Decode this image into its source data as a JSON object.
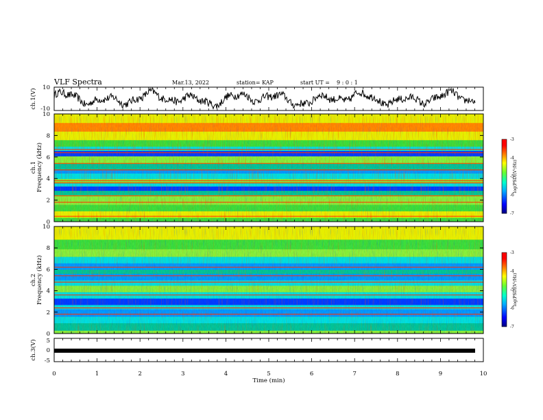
{
  "header": {
    "title": "VLF Spectra",
    "date": "Mar.13, 2022",
    "station_label": "station= KAP",
    "start_label": "start UT =",
    "start_time": "9 : 0 : 1"
  },
  "chart_data": [
    {
      "type": "line",
      "panel": "ch1-waveform",
      "ylabel": "ch.1(V)",
      "ylim": [
        -10,
        10
      ],
      "yticks": [
        10,
        -10
      ],
      "xlim": [
        0,
        10
      ],
      "color": "#000000"
    },
    {
      "type": "heatmap",
      "panel": "ch1-spectrogram",
      "ylabel_line1": "ch.1",
      "ylabel_line2": "Frequency (kHz)",
      "ylim": [
        0,
        10
      ],
      "yticks": [
        "0",
        "2",
        "4",
        "6",
        "8",
        "10"
      ],
      "xlim": [
        0,
        10
      ],
      "colorbar": {
        "label": "log(PSD)(V²/Hz)",
        "range": [
          -7,
          -3
        ],
        "ticks": [
          "-3",
          "-4",
          "-5",
          "-6",
          "-7"
        ]
      },
      "horizontal_lines_khz": [
        0.5,
        1.8,
        2.4,
        3.6,
        3.8,
        4.8,
        5.4,
        6.4,
        6.7
      ]
    },
    {
      "type": "heatmap",
      "panel": "ch2-spectrogram",
      "ylabel_line1": "ch.2",
      "ylabel_line2": "Frequency (kHz)",
      "ylim": [
        0,
        10
      ],
      "yticks": [
        "0",
        "2",
        "4",
        "6",
        "8",
        "10"
      ],
      "xlim": [
        0,
        10
      ],
      "colorbar": {
        "label": "log(PSD)(V²/Hz)",
        "range": [
          -7,
          -3
        ],
        "ticks": [
          "-3",
          "-4",
          "-5",
          "-6",
          "-7"
        ]
      },
      "horizontal_lines_khz": [
        1.8,
        2.4,
        3.6,
        4.8,
        5.4,
        6.2
      ]
    },
    {
      "type": "line",
      "panel": "ch3-waveform",
      "ylabel": "ch.3(V)",
      "ylim": [
        -5,
        5
      ],
      "yticks": [
        "5",
        "0",
        "-5"
      ],
      "xlabel": "Time (min)",
      "xlim": [
        0,
        10
      ],
      "xticks": [
        "0",
        "1",
        "2",
        "3",
        "4",
        "5",
        "6",
        "7",
        "8",
        "9",
        "10"
      ],
      "constant_value": -0.3
    }
  ],
  "colors": {
    "scale": [
      "#00007f",
      "#0000ff",
      "#0080ff",
      "#00ffff",
      "#80ff80",
      "#ffff00",
      "#ff8000",
      "#ff0000",
      "#7f0000"
    ]
  }
}
